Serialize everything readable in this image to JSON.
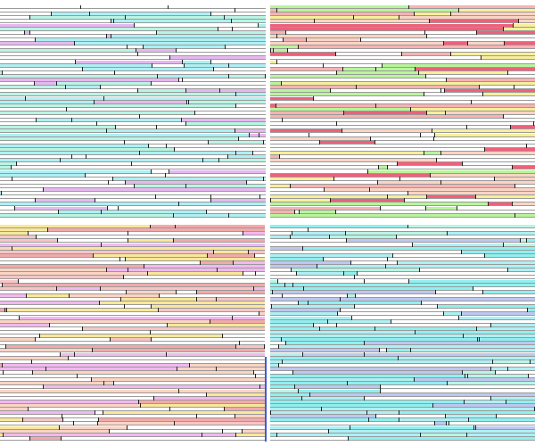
{
  "panels": [
    {
      "id": "top-left",
      "palette": [
        "#aef0f4",
        "#aef0f4",
        "#b9f5e4",
        "#e6b8f0",
        "#ffffff",
        "#ffffff",
        "#ffffff",
        "#ffffff"
      ]
    },
    {
      "id": "bottom-left",
      "palette": [
        "#f9e79a",
        "#f7c5c5",
        "#f3a9a9",
        "#f2b8f0",
        "#ffffff",
        "#ffffff",
        "#ffffff",
        "#fbd4c4"
      ]
    },
    {
      "id": "top-right",
      "palette": [
        "#f0607a",
        "#f7b2b2",
        "#f7ef9a",
        "#b8f59a",
        "#fbd4c4",
        "#ffffff",
        "#ffffff",
        "#ffffff"
      ]
    },
    {
      "id": "bottom-right",
      "palette": [
        "#8ff0f0",
        "#aef0f4",
        "#b9f5e4",
        "#bcc8f0",
        "#ffffff",
        "#8ff0f0",
        "#aef0f4",
        "#ffffff"
      ]
    }
  ],
  "accent_marker_color": "#3b5bdb"
}
